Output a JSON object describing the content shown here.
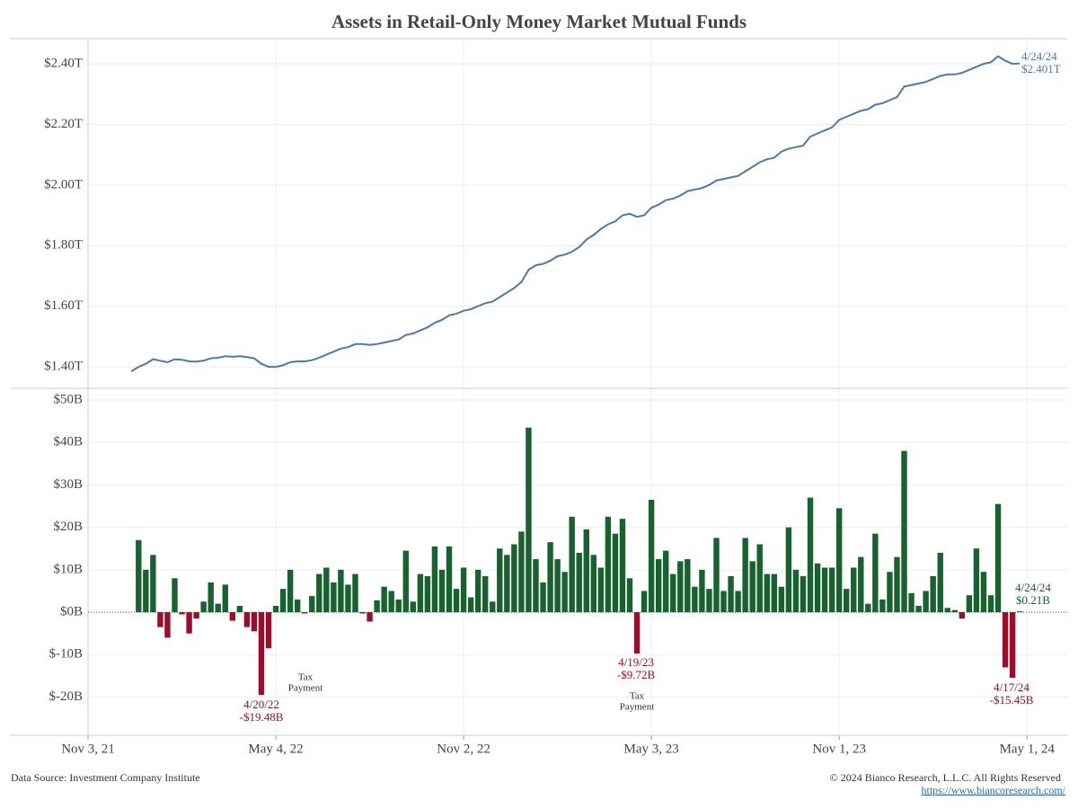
{
  "page": {
    "title": "Assets in Retail-Only Money Market Mutual Funds",
    "footer_left": "Data Source: Investment Company Institute",
    "footer_right": "© 2024 Bianco Research, L.L.C. All Rights Reserved",
    "footer_url": "https://www.biancoresearch.com/"
  },
  "chart_data": [
    {
      "type": "line",
      "x": [
        "2021-12-15",
        "2021-12-22",
        "2021-12-29",
        "2022-01-05",
        "2022-01-12",
        "2022-01-19",
        "2022-01-26",
        "2022-02-02",
        "2022-02-09",
        "2022-02-16",
        "2022-02-23",
        "2022-03-02",
        "2022-03-09",
        "2022-03-16",
        "2022-03-23",
        "2022-03-30",
        "2022-04-06",
        "2022-04-13",
        "2022-04-20",
        "2022-04-27",
        "2022-05-04",
        "2022-05-11",
        "2022-05-18",
        "2022-05-25",
        "2022-06-01",
        "2022-06-08",
        "2022-06-15",
        "2022-06-22",
        "2022-06-29",
        "2022-07-06",
        "2022-07-13",
        "2022-07-20",
        "2022-07-27",
        "2022-08-03",
        "2022-08-10",
        "2022-08-17",
        "2022-08-24",
        "2022-08-31",
        "2022-09-07",
        "2022-09-14",
        "2022-09-21",
        "2022-09-28",
        "2022-10-05",
        "2022-10-12",
        "2022-10-19",
        "2022-10-26",
        "2022-11-02",
        "2022-11-09",
        "2022-11-16",
        "2022-11-23",
        "2022-11-30",
        "2022-12-07",
        "2022-12-14",
        "2022-12-21",
        "2022-12-28",
        "2023-01-04",
        "2023-01-11",
        "2023-01-18",
        "2023-01-25",
        "2023-02-01",
        "2023-02-08",
        "2023-02-15",
        "2023-02-22",
        "2023-03-01",
        "2023-03-08",
        "2023-03-15",
        "2023-03-22",
        "2023-03-29",
        "2023-04-05",
        "2023-04-12",
        "2023-04-19",
        "2023-04-26",
        "2023-05-03",
        "2023-05-10",
        "2023-05-17",
        "2023-05-24",
        "2023-05-31",
        "2023-06-07",
        "2023-06-14",
        "2023-06-21",
        "2023-06-28",
        "2023-07-05",
        "2023-07-12",
        "2023-07-19",
        "2023-07-26",
        "2023-08-02",
        "2023-08-09",
        "2023-08-16",
        "2023-08-23",
        "2023-08-30",
        "2023-09-06",
        "2023-09-13",
        "2023-09-20",
        "2023-09-27",
        "2023-10-04",
        "2023-10-11",
        "2023-10-18",
        "2023-10-25",
        "2023-11-01",
        "2023-11-08",
        "2023-11-15",
        "2023-11-22",
        "2023-11-29",
        "2023-12-06",
        "2023-12-13",
        "2023-12-20",
        "2023-12-27",
        "2024-01-03",
        "2024-01-10",
        "2024-01-17",
        "2024-01-24",
        "2024-01-31",
        "2024-02-07",
        "2024-02-14",
        "2024-02-21",
        "2024-02-28",
        "2024-03-06",
        "2024-03-13",
        "2024-03-20",
        "2024-03-27",
        "2024-04-03",
        "2024-04-10",
        "2024-04-17",
        "2024-04-24"
      ],
      "values": [
        1.385,
        1.4,
        1.41,
        1.425,
        1.42,
        1.415,
        1.425,
        1.423,
        1.418,
        1.417,
        1.42,
        1.428,
        1.43,
        1.435,
        1.433,
        1.435,
        1.432,
        1.428,
        1.41,
        1.4,
        1.4,
        1.405,
        1.415,
        1.418,
        1.418,
        1.422,
        1.43,
        1.44,
        1.45,
        1.46,
        1.465,
        1.475,
        1.475,
        1.472,
        1.475,
        1.48,
        1.485,
        1.49,
        1.505,
        1.51,
        1.52,
        1.53,
        1.545,
        1.555,
        1.57,
        1.575,
        1.585,
        1.59,
        1.6,
        1.61,
        1.615,
        1.63,
        1.645,
        1.66,
        1.68,
        1.72,
        1.735,
        1.74,
        1.75,
        1.765,
        1.77,
        1.78,
        1.795,
        1.82,
        1.835,
        1.855,
        1.87,
        1.88,
        1.9,
        1.905,
        1.895,
        1.9,
        1.925,
        1.935,
        1.95,
        1.955,
        1.965,
        1.98,
        1.985,
        1.99,
        2.0,
        2.015,
        2.02,
        2.025,
        2.03,
        2.045,
        2.06,
        2.075,
        2.085,
        2.09,
        2.11,
        2.12,
        2.125,
        2.13,
        2.16,
        2.17,
        2.18,
        2.19,
        2.215,
        2.225,
        2.235,
        2.245,
        2.25,
        2.265,
        2.27,
        2.28,
        2.29,
        2.325,
        2.33,
        2.335,
        2.34,
        2.35,
        2.36,
        2.365,
        2.365,
        2.37,
        2.38,
        2.39,
        2.4,
        2.405,
        2.425,
        2.41,
        2.4,
        2.401
      ],
      "color": "#4e79a7",
      "xlim": [
        "2021-11-03",
        "2024-06-09"
      ],
      "ylim": [
        1.329,
        2.483
      ],
      "yticks": [
        {
          "value": 1.4,
          "label": "$1.40T"
        },
        {
          "value": 1.6,
          "label": "$1.60T"
        },
        {
          "value": 1.8,
          "label": "$1.80T"
        },
        {
          "value": 2.0,
          "label": "$2.00T"
        },
        {
          "value": 2.2,
          "label": "$2.20T"
        },
        {
          "value": 2.4,
          "label": "$2.40T"
        }
      ],
      "xticks": [
        {
          "value": "2021-11-03",
          "label": "Nov 3, 21"
        },
        {
          "value": "2022-05-04",
          "label": "May 4, 22"
        },
        {
          "value": "2022-11-02",
          "label": "Nov 2, 22"
        },
        {
          "value": "2023-05-03",
          "label": "May 3, 23"
        },
        {
          "value": "2023-11-01",
          "label": "Nov 1, 23"
        },
        {
          "value": "2024-05-01",
          "label": "May 1, 24"
        }
      ],
      "grid": true,
      "annotations": [
        {
          "text": [
            "4/24/24",
            "$2.401T"
          ]
        }
      ]
    },
    {
      "type": "bar",
      "x": [
        "2021-12-22",
        "2021-12-29",
        "2022-01-05",
        "2022-01-12",
        "2022-01-19",
        "2022-01-26",
        "2022-02-02",
        "2022-02-09",
        "2022-02-16",
        "2022-02-23",
        "2022-03-02",
        "2022-03-09",
        "2022-03-16",
        "2022-03-23",
        "2022-03-30",
        "2022-04-06",
        "2022-04-13",
        "2022-04-20",
        "2022-04-27",
        "2022-05-04",
        "2022-05-11",
        "2022-05-18",
        "2022-05-25",
        "2022-06-01",
        "2022-06-08",
        "2022-06-15",
        "2022-06-22",
        "2022-06-29",
        "2022-07-06",
        "2022-07-13",
        "2022-07-20",
        "2022-07-27",
        "2022-08-03",
        "2022-08-10",
        "2022-08-17",
        "2022-08-24",
        "2022-08-31",
        "2022-09-07",
        "2022-09-14",
        "2022-09-21",
        "2022-09-28",
        "2022-10-05",
        "2022-10-12",
        "2022-10-19",
        "2022-10-26",
        "2022-11-02",
        "2022-11-09",
        "2022-11-16",
        "2022-11-23",
        "2022-11-30",
        "2022-12-07",
        "2022-12-14",
        "2022-12-21",
        "2022-12-28",
        "2023-01-04",
        "2023-01-11",
        "2023-01-18",
        "2023-01-25",
        "2023-02-01",
        "2023-02-08",
        "2023-02-15",
        "2023-02-22",
        "2023-03-01",
        "2023-03-08",
        "2023-03-15",
        "2023-03-22",
        "2023-03-29",
        "2023-04-05",
        "2023-04-12",
        "2023-04-19",
        "2023-04-26",
        "2023-05-03",
        "2023-05-10",
        "2023-05-17",
        "2023-05-24",
        "2023-05-31",
        "2023-06-07",
        "2023-06-14",
        "2023-06-21",
        "2023-06-28",
        "2023-07-05",
        "2023-07-12",
        "2023-07-19",
        "2023-07-26",
        "2023-08-02",
        "2023-08-09",
        "2023-08-16",
        "2023-08-23",
        "2023-08-30",
        "2023-09-06",
        "2023-09-13",
        "2023-09-20",
        "2023-09-27",
        "2023-10-04",
        "2023-10-11",
        "2023-10-18",
        "2023-10-25",
        "2023-11-01",
        "2023-11-08",
        "2023-11-15",
        "2023-11-22",
        "2023-11-29",
        "2023-12-06",
        "2023-12-13",
        "2023-12-20",
        "2023-12-27",
        "2024-01-03",
        "2024-01-10",
        "2024-01-17",
        "2024-01-24",
        "2024-01-31",
        "2024-02-07",
        "2024-02-14",
        "2024-02-21",
        "2024-02-28",
        "2024-03-06",
        "2024-03-13",
        "2024-03-20",
        "2024-03-27",
        "2024-04-03",
        "2024-04-10",
        "2024-04-17",
        "2024-04-24"
      ],
      "values": [
        17,
        10,
        13.5,
        -3.5,
        -6,
        8,
        -0.5,
        -5,
        -1.5,
        2.5,
        7,
        2,
        6.5,
        -2,
        1.5,
        -3.5,
        -4.5,
        -19.48,
        -8.5,
        1.5,
        5.5,
        10,
        3,
        -0.3,
        3.8,
        9,
        10.5,
        7,
        10,
        6.5,
        9,
        -0.3,
        -2.2,
        2.8,
        6,
        5,
        3,
        14.5,
        2.5,
        9,
        8.5,
        15.5,
        10,
        15.5,
        5.5,
        10.5,
        3.5,
        10,
        8.5,
        2.5,
        15,
        13.5,
        16,
        19,
        43.5,
        12.5,
        7,
        16.5,
        12.5,
        9.5,
        22.5,
        14,
        19.5,
        13.5,
        10.5,
        22.5,
        18.5,
        22,
        8,
        -9.72,
        5,
        26.5,
        12.5,
        14.5,
        9,
        12,
        12.5,
        6,
        10,
        5.5,
        17.5,
        5,
        8.5,
        5,
        17.5,
        12,
        16,
        9,
        9,
        6,
        20,
        10,
        8.5,
        27,
        11.5,
        10.5,
        10.5,
        24.5,
        5.5,
        10.5,
        13,
        2,
        18.5,
        3,
        9.5,
        13,
        38,
        4.5,
        1.5,
        5,
        8.5,
        14,
        1,
        0.5,
        -1.5,
        4,
        15,
        9.5,
        4,
        25.5,
        -13,
        -15.45,
        0.21
      ],
      "color_positive": "#17622e",
      "color_negative": "#9b0d2a",
      "xlim": [
        "2021-11-03",
        "2024-06-09"
      ],
      "ylim": [
        -29,
        52.75
      ],
      "yticks": [
        {
          "value": -20,
          "label": "$-20B"
        },
        {
          "value": -10,
          "label": "$-10B"
        },
        {
          "value": 0,
          "label": "$0B"
        },
        {
          "value": 10,
          "label": "$10B"
        },
        {
          "value": 20,
          "label": "$20B"
        },
        {
          "value": 30,
          "label": "$30B"
        },
        {
          "value": 40,
          "label": "$40B"
        },
        {
          "value": 50,
          "label": "$50B"
        }
      ],
      "xticks": [
        {
          "value": "2021-11-03",
          "label": "Nov 3, 21"
        },
        {
          "value": "2022-05-04",
          "label": "May 4, 22"
        },
        {
          "value": "2022-11-02",
          "label": "Nov 2, 22"
        },
        {
          "value": "2023-05-03",
          "label": "May 3, 23"
        },
        {
          "value": "2023-11-01",
          "label": "Nov 1, 23"
        },
        {
          "value": "2024-05-01",
          "label": "May 1, 24"
        }
      ],
      "grid": true,
      "annotations": [
        {
          "text": [
            "4/20/22",
            "-$19.48B"
          ]
        },
        {
          "text": [
            "Tax",
            "Payment"
          ]
        },
        {
          "text": [
            "4/19/23",
            "-$9.72B"
          ]
        },
        {
          "text": [
            "Tax",
            "Payment"
          ]
        },
        {
          "text": [
            "4/17/24",
            "-$15.45B"
          ]
        },
        {
          "text": [
            "4/24/24",
            "$0.21B"
          ]
        }
      ]
    }
  ]
}
